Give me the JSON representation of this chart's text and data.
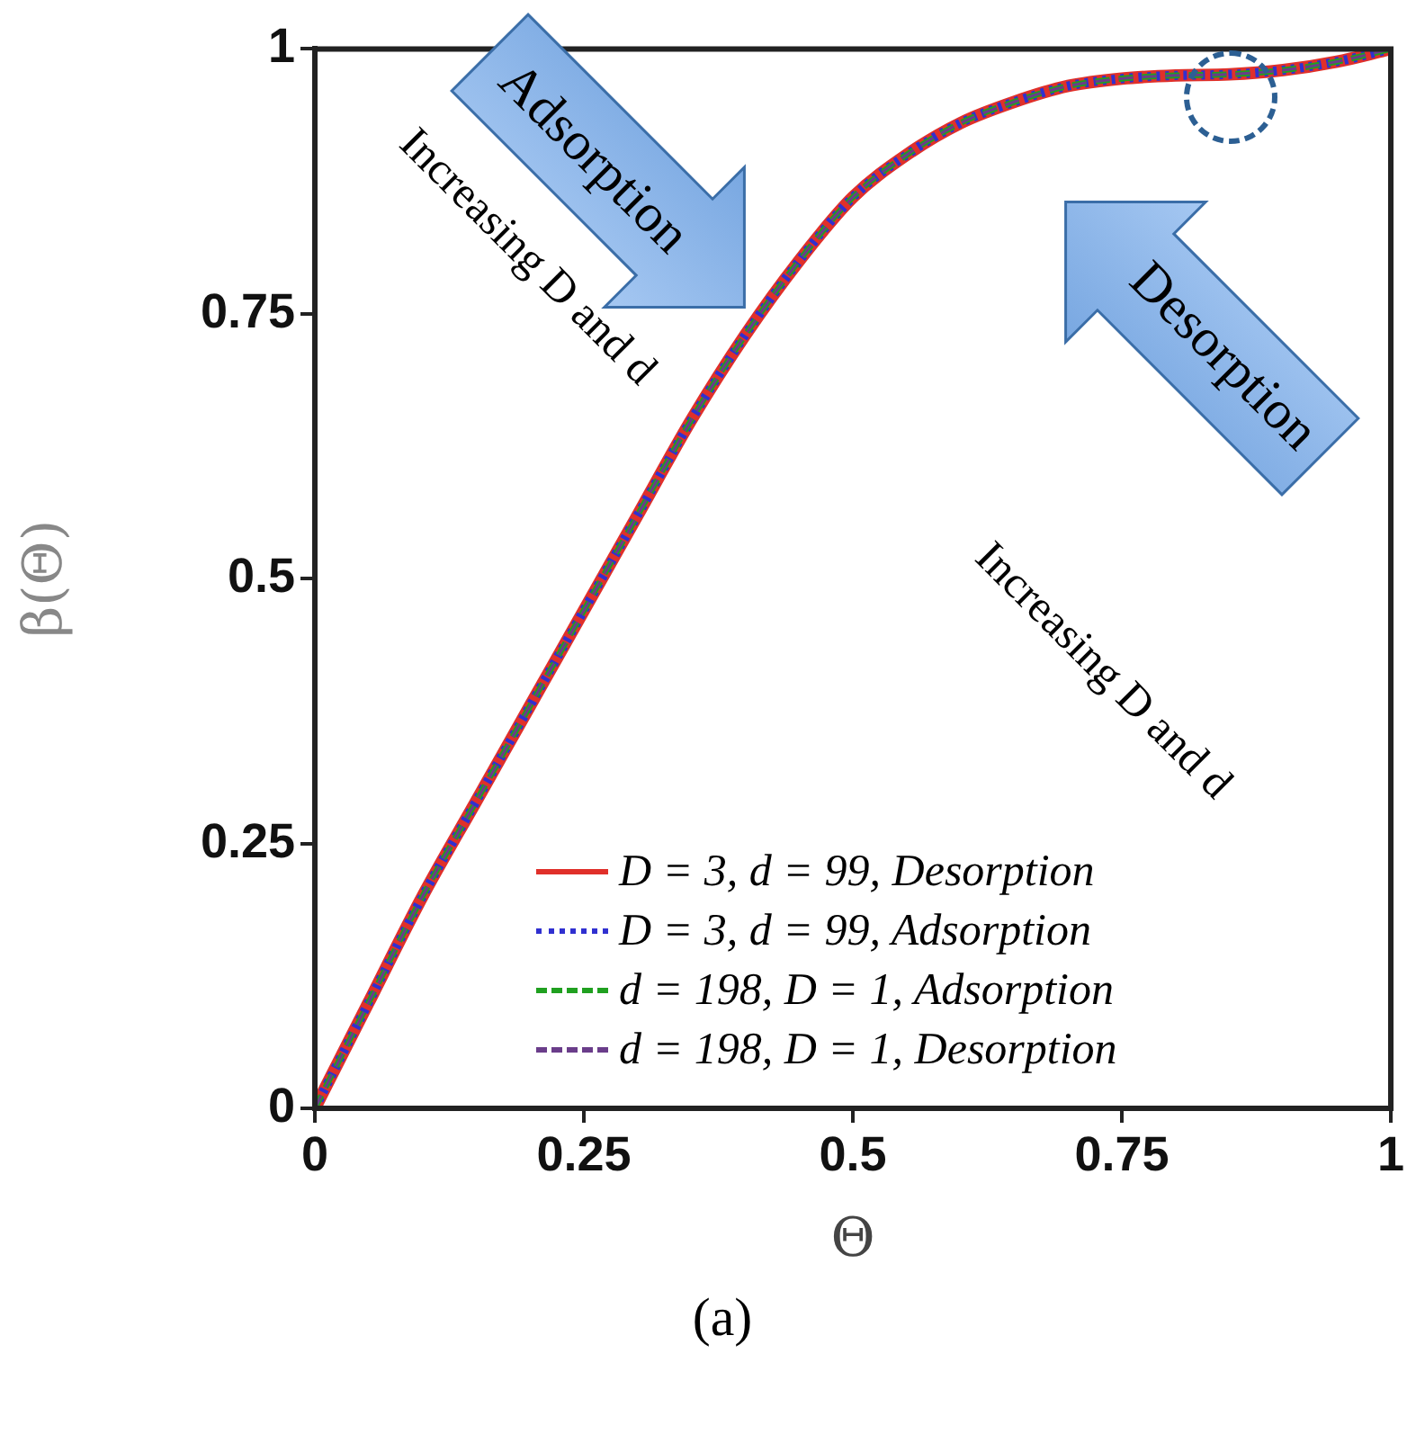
{
  "chart_data": {
    "type": "line",
    "xlabel": "Θ",
    "ylabel": "β(Θ)",
    "xlim": [
      0,
      1
    ],
    "ylim": [
      0,
      1
    ],
    "xticks": [
      0,
      0.25,
      0.5,
      0.75,
      1
    ],
    "yticks": [
      0,
      0.25,
      0.5,
      0.75,
      1
    ],
    "grid": false,
    "legend": "bottom right",
    "marker": "none",
    "x": [
      0,
      0.05,
      0.1,
      0.15,
      0.2,
      0.25,
      0.3,
      0.35,
      0.4,
      0.45,
      0.5,
      0.55,
      0.6,
      0.65,
      0.7,
      0.75,
      0.8,
      0.85,
      0.9,
      0.95,
      1
    ],
    "series": [
      {
        "name": "D = 3, d = 99, Desorption",
        "color": "#e0302a",
        "line_style": "solid",
        "values": [
          0,
          0.1,
          0.2,
          0.29,
          0.38,
          0.47,
          0.56,
          0.65,
          0.73,
          0.8,
          0.86,
          0.9,
          0.93,
          0.95,
          0.965,
          0.972,
          0.975,
          0.976,
          0.98,
          0.988,
          1.0
        ]
      },
      {
        "name": "D = 3, d = 99, Adsorption",
        "color": "#3030d0",
        "line_style": "dotted",
        "values": [
          0,
          0.1,
          0.2,
          0.29,
          0.38,
          0.47,
          0.56,
          0.65,
          0.73,
          0.8,
          0.86,
          0.9,
          0.93,
          0.95,
          0.965,
          0.972,
          0.975,
          0.976,
          0.98,
          0.988,
          1.0
        ]
      },
      {
        "name": "d = 198, D = 1, Adsorption",
        "color": "#20a020",
        "line_style": "dashed",
        "values": [
          0,
          0.1,
          0.2,
          0.29,
          0.38,
          0.47,
          0.56,
          0.65,
          0.73,
          0.8,
          0.86,
          0.9,
          0.93,
          0.95,
          0.965,
          0.972,
          0.975,
          0.976,
          0.98,
          0.988,
          1.0
        ]
      },
      {
        "name": "d = 198, D = 1, Desorption",
        "color": "#6a3d8a",
        "line_style": "dashed",
        "values": [
          0,
          0.1,
          0.2,
          0.29,
          0.38,
          0.47,
          0.56,
          0.65,
          0.73,
          0.8,
          0.86,
          0.9,
          0.93,
          0.95,
          0.965,
          0.972,
          0.975,
          0.976,
          0.98,
          0.988,
          1.0
        ]
      }
    ],
    "annotations": [
      "Increasing D and d",
      "Increasing D and d",
      "Adsorption",
      "Desorption",
      "(a)"
    ]
  }
}
